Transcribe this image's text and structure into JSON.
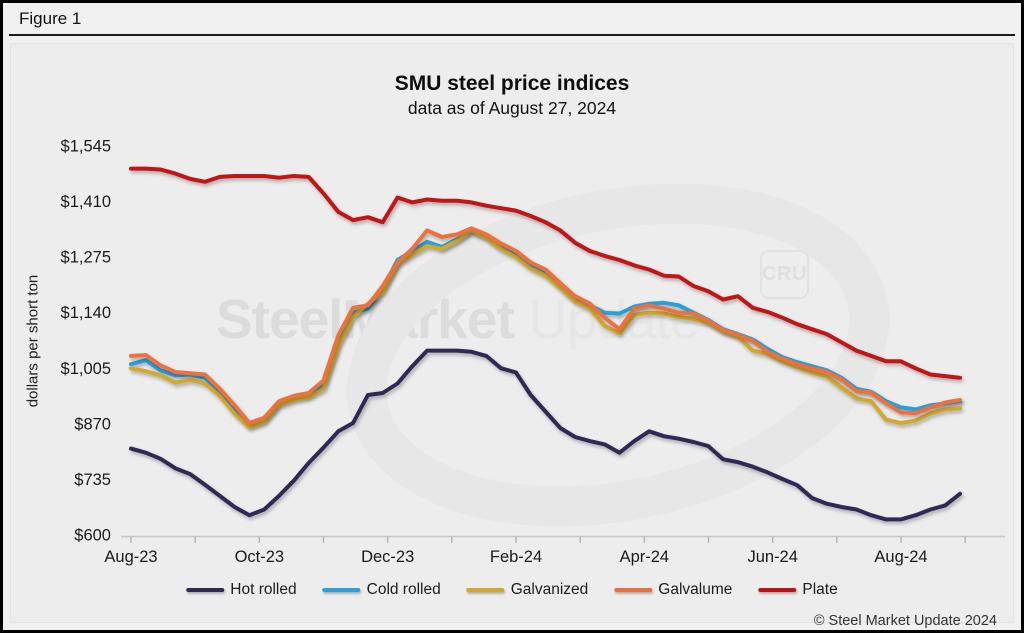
{
  "figure": {
    "label": "Figure 1"
  },
  "chart": {
    "title": "SMU steel price indices",
    "subtitle": "data as of August 27, 2024",
    "y_axis_title": "dollars per short ton"
  },
  "watermark": {
    "brand": "SteelMarket",
    "suffix": "Update",
    "badge": "CRU"
  },
  "footer": {
    "copyright": "© Steel Market Update 2024"
  },
  "chart_data": {
    "type": "line",
    "title": "SMU steel price indices",
    "subtitle": "data as of August 27, 2024",
    "ylabel": "dollars per short ton",
    "ylim": [
      600,
      1545
    ],
    "grid": false,
    "legend_position": "bottom",
    "x_range": "Aug-23 to Aug-24, weekly observations",
    "x_month_tick_count": 14,
    "x_tick_labels": [
      {
        "month_index": 0,
        "label": "Aug-23"
      },
      {
        "month_index": 2,
        "label": "Oct-23"
      },
      {
        "month_index": 4,
        "label": "Dec-23"
      },
      {
        "month_index": 6,
        "label": "Feb-24"
      },
      {
        "month_index": 8,
        "label": "Apr-24"
      },
      {
        "month_index": 10,
        "label": "Jun-24"
      },
      {
        "month_index": 12,
        "label": "Aug-24"
      }
    ],
    "y_ticks": [
      {
        "value": 600,
        "label": "$600"
      },
      {
        "value": 735,
        "label": "$735"
      },
      {
        "value": 870,
        "label": "$870"
      },
      {
        "value": 1005,
        "label": "$1,005"
      },
      {
        "value": 1140,
        "label": "$1,140"
      },
      {
        "value": 1275,
        "label": "$1,275"
      },
      {
        "value": 1410,
        "label": "$1,410"
      },
      {
        "value": 1545,
        "label": "$1,545"
      }
    ],
    "series": [
      {
        "name": "Hot rolled",
        "color": "#2e2957",
        "values": [
          810,
          800,
          785,
          762,
          748,
          722,
          695,
          668,
          648,
          662,
          695,
          732,
          775,
          812,
          852,
          872,
          940,
          945,
          968,
          1010,
          1048,
          1048,
          1048,
          1045,
          1035,
          1005,
          995,
          940,
          900,
          860,
          838,
          828,
          820,
          800,
          828,
          852,
          840,
          834,
          826,
          816,
          784,
          777,
          766,
          752,
          736,
          721,
          690,
          676,
          668,
          662,
          648,
          638,
          638,
          648,
          662,
          672,
          700
        ]
      },
      {
        "name": "Cold rolled",
        "color": "#2ca0d8",
        "values": [
          1015,
          1025,
          1000,
          988,
          990,
          982,
          950,
          905,
          867,
          880,
          922,
          935,
          940,
          965,
          1070,
          1140,
          1150,
          1198,
          1268,
          1290,
          1312,
          1300,
          1318,
          1338,
          1325,
          1300,
          1285,
          1255,
          1240,
          1205,
          1172,
          1158,
          1140,
          1138,
          1155,
          1162,
          1164,
          1158,
          1140,
          1122,
          1100,
          1088,
          1075,
          1052,
          1032,
          1020,
          1010,
          1000,
          982,
          955,
          948,
          925,
          910,
          905,
          915,
          920,
          925
        ]
      },
      {
        "name": "Galvanized",
        "color": "#d2a82e",
        "values": [
          1005,
          998,
          988,
          970,
          977,
          968,
          938,
          895,
          862,
          875,
          915,
          928,
          935,
          955,
          1060,
          1130,
          1162,
          1190,
          1258,
          1282,
          1302,
          1295,
          1315,
          1340,
          1322,
          1295,
          1275,
          1248,
          1230,
          1200,
          1168,
          1150,
          1108,
          1090,
          1135,
          1140,
          1138,
          1130,
          1125,
          1115,
          1095,
          1082,
          1048,
          1040,
          1022,
          1008,
          995,
          985,
          958,
          932,
          925,
          880,
          872,
          878,
          895,
          905,
          908
        ]
      },
      {
        "name": "Galvalume",
        "color": "#ed6f3e",
        "values": [
          1035,
          1037,
          1012,
          996,
          993,
          990,
          955,
          915,
          872,
          885,
          925,
          938,
          945,
          975,
          1085,
          1152,
          1158,
          1205,
          1262,
          1295,
          1340,
          1324,
          1330,
          1345,
          1330,
          1308,
          1290,
          1262,
          1245,
          1212,
          1180,
          1162,
          1128,
          1100,
          1150,
          1158,
          1150,
          1140,
          1138,
          1120,
          1098,
          1086,
          1072,
          1045,
          1028,
          1015,
          1005,
          996,
          978,
          950,
          946,
          920,
          898,
          896,
          910,
          922,
          928
        ]
      },
      {
        "name": "Plate",
        "color": "#c01212",
        "values": [
          1490,
          1490,
          1488,
          1478,
          1465,
          1458,
          1470,
          1472,
          1472,
          1472,
          1468,
          1472,
          1470,
          1430,
          1385,
          1365,
          1372,
          1360,
          1420,
          1408,
          1415,
          1412,
          1412,
          1408,
          1400,
          1394,
          1388,
          1375,
          1360,
          1340,
          1310,
          1290,
          1278,
          1268,
          1255,
          1245,
          1230,
          1228,
          1205,
          1192,
          1172,
          1180,
          1152,
          1142,
          1128,
          1112,
          1100,
          1088,
          1068,
          1048,
          1035,
          1022,
          1022,
          1005,
          990,
          986,
          982
        ]
      }
    ]
  }
}
